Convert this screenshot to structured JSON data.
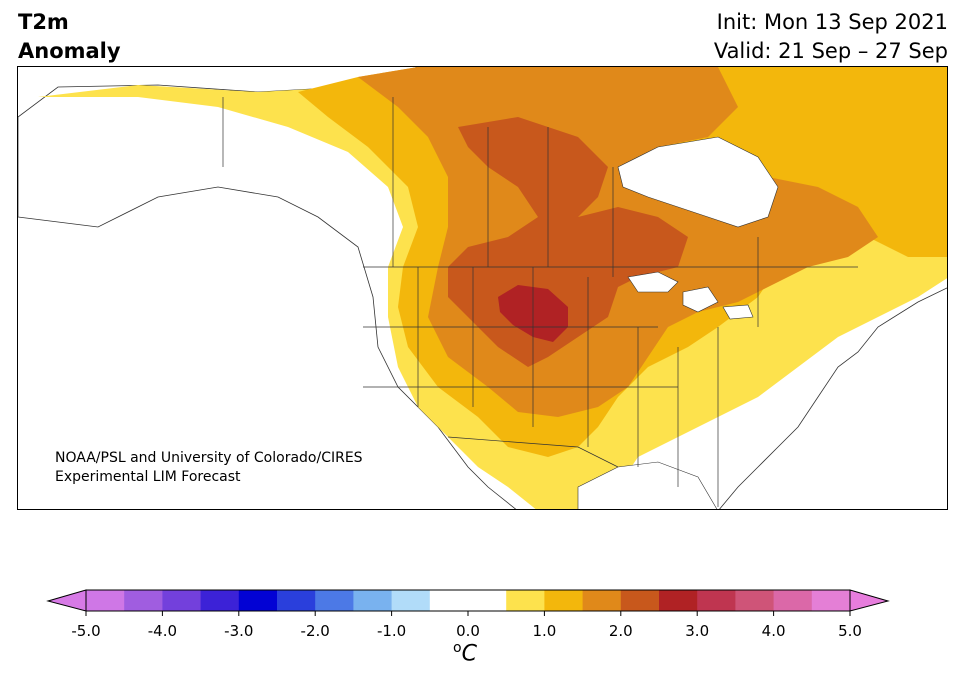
{
  "title": {
    "left_line1": "T2m",
    "left_line2": "Anomaly",
    "right_line1": "Init: Mon 13 Sep 2021",
    "right_line2": "Valid: 21 Sep – 27 Sep"
  },
  "map": {
    "region": "North America",
    "credit_line1": "NOAA/PSL and University of Colorado/CIRES",
    "credit_line2": "Experimental LIM Forecast",
    "max_anomaly_area": "northern Great Plains",
    "colors": {
      "ocean": "#ffffff",
      "anom_0_5_1_0": "#fde24d",
      "anom_1_0_1_5": "#f3b70c",
      "anom_1_5_2_0": "#e0891a",
      "anom_2_0_2_5": "#c8581c",
      "anom_2_5_3_0": "#b02224",
      "borders": "#333333"
    }
  },
  "colorbar": {
    "ticks": [
      "-5.0",
      "-4.0",
      "-3.0",
      "-2.0",
      "-1.0",
      "0.0",
      "1.0",
      "2.0",
      "3.0",
      "4.0",
      "5.0"
    ],
    "tick_values": [
      -5,
      -4,
      -3,
      -2,
      -1,
      0,
      1,
      2,
      3,
      4,
      5
    ],
    "unit_sup": "o",
    "unit": "C",
    "colors": [
      "#cf77e6",
      "#a05de0",
      "#7340dc",
      "#3c22d7",
      "#0202d4",
      "#2a3fdc",
      "#4c79e6",
      "#79b2ef",
      "#b1dcf9",
      "#ffffff",
      "#ffffff",
      "#fde24d",
      "#f3b70c",
      "#e0891a",
      "#c8581c",
      "#b02224",
      "#bf3550",
      "#cf5478",
      "#db68a8",
      "#e47fd6"
    ],
    "under_color": "#d77ae6",
    "over_color": "#e77ddd"
  }
}
